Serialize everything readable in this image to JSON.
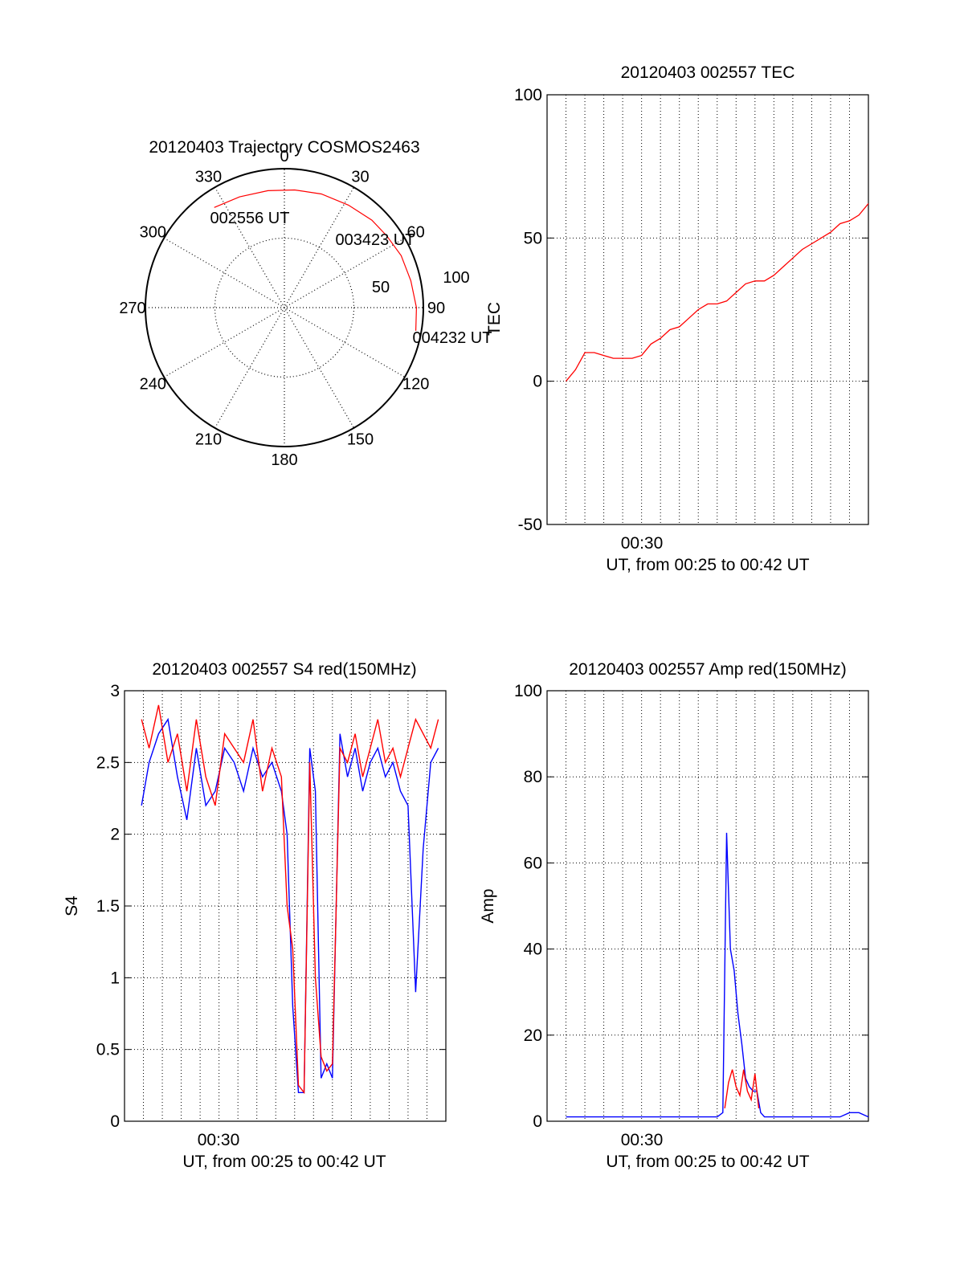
{
  "chart_data": [
    {
      "type": "polar",
      "title": "20120403 Trajectory COSMOS2463",
      "angle_labels": [
        "0",
        "30",
        "60",
        "90",
        "120",
        "150",
        "180",
        "210",
        "240",
        "270",
        "300",
        "330"
      ],
      "radial_labels": [
        "50",
        "100"
      ],
      "track_color": "#ff0000",
      "track": [
        {
          "az": 325,
          "r": 88
        },
        {
          "az": 338,
          "r": 86
        },
        {
          "az": 352,
          "r": 85
        },
        {
          "az": 5,
          "r": 85
        },
        {
          "az": 18,
          "r": 86
        },
        {
          "az": 32,
          "r": 87
        },
        {
          "az": 45,
          "r": 89
        },
        {
          "az": 55,
          "r": 90
        },
        {
          "az": 66,
          "r": 92
        },
        {
          "az": 78,
          "r": 93
        },
        {
          "az": 90,
          "r": 95
        },
        {
          "az": 100,
          "r": 96
        }
      ],
      "annotations": [
        {
          "text": "002556 UT"
        },
        {
          "text": "003423 UT"
        },
        {
          "text": "004232 UT"
        }
      ]
    },
    {
      "type": "line",
      "title": "20120403 002557 TEC",
      "ylabel": "TEC",
      "xlabel": "UT, from 00:25 to 00:42 UT",
      "xtick_label": "00:30",
      "xlim": [
        25,
        42
      ],
      "ylim": [
        -50,
        100
      ],
      "yticks": [
        -50,
        0,
        50,
        100
      ],
      "series": [
        {
          "color": "#ff0000",
          "x": [
            26,
            26.5,
            27,
            27.5,
            28,
            28.5,
            29,
            29.5,
            30,
            30.5,
            31,
            31.5,
            32,
            32.5,
            33,
            33.5,
            34,
            34.5,
            35,
            35.5,
            36,
            36.5,
            37,
            37.5,
            38,
            38.5,
            39,
            39.5,
            40,
            40.5,
            41,
            41.5,
            42
          ],
          "y": [
            0,
            4,
            10,
            10,
            9,
            8,
            8,
            8,
            9,
            13,
            15,
            18,
            19,
            22,
            25,
            27,
            27,
            28,
            31,
            34,
            35,
            35,
            37,
            40,
            43,
            46,
            48,
            50,
            52,
            55,
            56,
            58,
            62
          ]
        }
      ]
    },
    {
      "type": "line",
      "title": "20120403 002557 S4 red(150MHz)",
      "ylabel": "S4",
      "xlabel": "UT, from 00:25 to 00:42 UT",
      "xtick_label": "00:30",
      "xlim": [
        25,
        42
      ],
      "ylim": [
        0,
        3
      ],
      "yticks": [
        0,
        0.5,
        1,
        1.5,
        2,
        2.5,
        3
      ],
      "yticklabels": [
        "0",
        "0.5",
        "1",
        "1.5",
        "2",
        "2.5",
        "3"
      ],
      "series": [
        {
          "color": "#0000ff",
          "x": [
            25.9,
            26.3,
            26.8,
            27.3,
            27.8,
            28.3,
            28.8,
            29.3,
            29.8,
            30.3,
            30.8,
            31.3,
            31.8,
            32.3,
            32.8,
            33.3,
            33.6,
            33.9,
            34.2,
            34.5,
            34.8,
            35.1,
            35.4,
            35.7,
            36.0,
            36.4,
            36.8,
            37.2,
            37.6,
            38.0,
            38.4,
            38.8,
            39.2,
            39.6,
            40.0,
            40.4,
            40.8,
            41.2,
            41.6
          ],
          "y": [
            2.2,
            2.5,
            2.7,
            2.8,
            2.4,
            2.1,
            2.6,
            2.2,
            2.3,
            2.6,
            2.5,
            2.3,
            2.6,
            2.4,
            2.5,
            2.3,
            2.0,
            0.8,
            0.2,
            0.2,
            2.6,
            2.3,
            0.3,
            0.4,
            0.3,
            2.7,
            2.4,
            2.6,
            2.3,
            2.5,
            2.6,
            2.4,
            2.5,
            2.3,
            2.2,
            0.9,
            1.9,
            2.5,
            2.6
          ]
        },
        {
          "color": "#ff0000",
          "x": [
            25.9,
            26.3,
            26.8,
            27.3,
            27.8,
            28.3,
            28.8,
            29.3,
            29.8,
            30.3,
            30.8,
            31.3,
            31.8,
            32.3,
            32.8,
            33.3,
            33.6,
            33.9,
            34.2,
            34.5,
            34.8,
            35.1,
            35.4,
            35.7,
            36.0,
            36.4,
            36.8,
            37.2,
            37.6,
            38.0,
            38.4,
            38.8,
            39.2,
            39.6,
            40.0,
            40.4,
            40.8,
            41.2,
            41.6
          ],
          "y": [
            2.8,
            2.6,
            2.9,
            2.5,
            2.7,
            2.3,
            2.8,
            2.4,
            2.2,
            2.7,
            2.6,
            2.5,
            2.8,
            2.3,
            2.6,
            2.4,
            1.5,
            1.2,
            0.25,
            0.2,
            2.5,
            1.0,
            0.45,
            0.35,
            0.4,
            2.6,
            2.5,
            2.7,
            2.4,
            2.6,
            2.8,
            2.5,
            2.6,
            2.4,
            2.6,
            2.8,
            2.7,
            2.6,
            2.8
          ]
        }
      ]
    },
    {
      "type": "line",
      "title": "20120403 002557 Amp red(150MHz)",
      "ylabel": "Amp",
      "xlabel": "UT, from 00:25 to 00:42 UT",
      "xtick_label": "00:30",
      "xlim": [
        25,
        42
      ],
      "ylim": [
        0,
        100
      ],
      "yticks": [
        0,
        20,
        40,
        60,
        80,
        100
      ],
      "series": [
        {
          "color": "#0000ff",
          "x": [
            26,
            27,
            28,
            29,
            30,
            31,
            32,
            33,
            34,
            34.3,
            34.5,
            34.7,
            34.9,
            35.1,
            35.3,
            35.5,
            35.7,
            35.9,
            36.1,
            36.3,
            36.5,
            37,
            37.5,
            38,
            38.5,
            39,
            39.5,
            40,
            40.5,
            41,
            41.5,
            42
          ],
          "y": [
            1,
            1,
            1,
            1,
            1,
            1,
            1,
            1,
            1,
            2,
            67,
            40,
            35,
            25,
            18,
            10,
            8,
            7,
            7,
            2,
            1,
            1,
            1,
            1,
            1,
            1,
            1,
            1,
            1,
            2,
            2,
            1
          ]
        },
        {
          "color": "#ff0000",
          "x": [
            34.4,
            34.6,
            34.8,
            35.0,
            35.2,
            35.4,
            35.6,
            35.8,
            36.0,
            36.2
          ],
          "y": [
            3,
            9,
            12,
            8,
            6,
            12,
            7,
            5,
            11,
            3
          ]
        }
      ]
    }
  ]
}
